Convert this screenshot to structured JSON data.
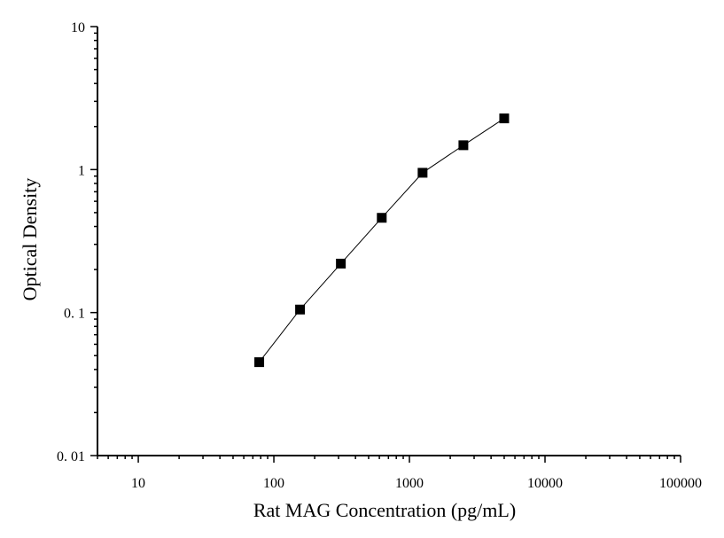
{
  "chart_data": {
    "type": "scatter",
    "title": "",
    "xlabel": "Rat MAG Concentration (pg/mL)",
    "ylabel": "Optical Density",
    "xscale": "log",
    "yscale": "log",
    "xlim": [
      5,
      100000
    ],
    "ylim": [
      0.01,
      10
    ],
    "x_tick_labels": [
      "10",
      "100",
      "1000",
      "10000",
      "100000"
    ],
    "x_tick_values": [
      10,
      100,
      1000,
      10000,
      100000
    ],
    "y_tick_labels": [
      "0. 01",
      "0. 1",
      "1",
      "10"
    ],
    "y_tick_values": [
      0.01,
      0.1,
      1,
      10
    ],
    "grid": false,
    "legend": "none",
    "series": [
      {
        "marker": "square",
        "connected": true,
        "color": "#000000",
        "x": [
          78,
          156,
          312,
          625,
          1250,
          2500,
          5000
        ],
        "y": [
          0.045,
          0.105,
          0.22,
          0.46,
          0.95,
          1.48,
          2.28
        ]
      }
    ]
  }
}
